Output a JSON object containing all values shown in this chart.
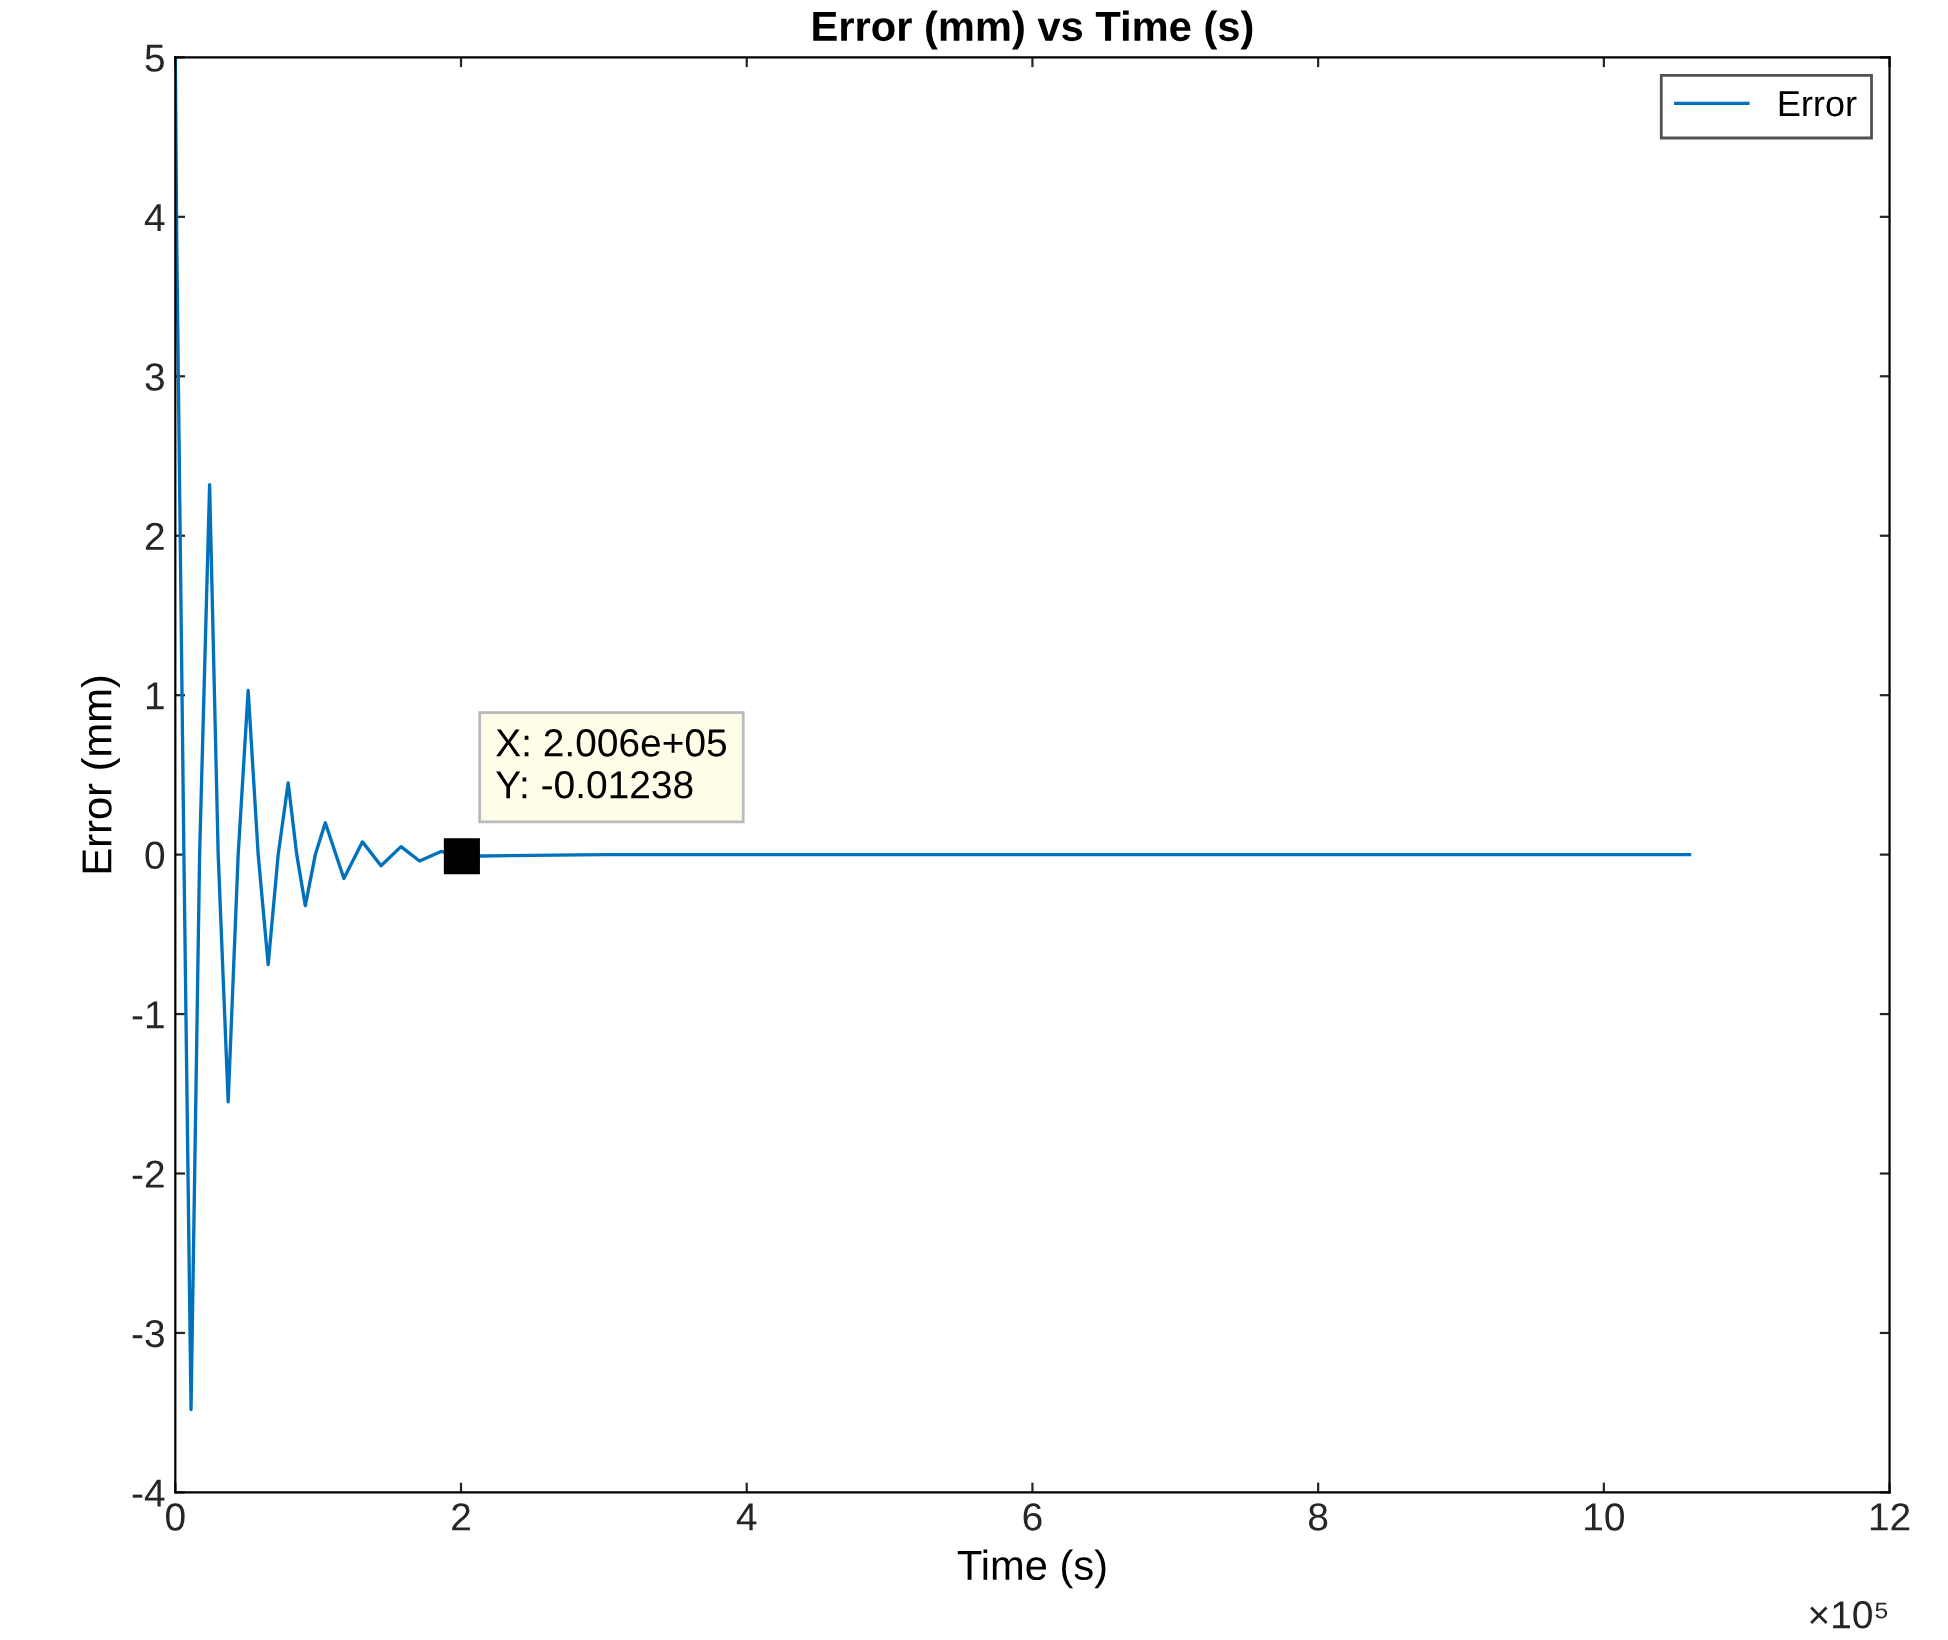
{
  "chart_data": {
    "type": "line",
    "title": "Error (mm) vs Time (s)",
    "xlabel": "Time (s)",
    "ylabel": "Error (mm)",
    "series": [
      {
        "name": "Error",
        "color": "#0072bd",
        "x": [
          0,
          0.01,
          0.06,
          0.11,
          0.17,
          0.24,
          0.3,
          0.37,
          0.44,
          0.51,
          0.58,
          0.65,
          0.72,
          0.79,
          0.85,
          0.91,
          0.98,
          1.05,
          1.18,
          1.31,
          1.44,
          1.58,
          1.71,
          1.86,
          2.006,
          3,
          5,
          8,
          10.6
        ],
        "values": [
          5,
          3.85,
          0,
          -3.48,
          0,
          2.32,
          0,
          -1.55,
          0,
          1.03,
          0,
          -0.69,
          0,
          0.45,
          0,
          -0.32,
          0,
          0.2,
          -0.15,
          0.08,
          -0.07,
          0.05,
          -0.04,
          0.02,
          -0.01,
          0,
          0,
          0,
          0
        ]
      }
    ],
    "xlim": [
      0,
      12
    ],
    "ylim": [
      -4,
      5
    ],
    "xticks": [
      0,
      2,
      4,
      6,
      8,
      10,
      12
    ],
    "yticks": [
      -4,
      -3,
      -2,
      -1,
      0,
      1,
      2,
      3,
      4,
      5
    ],
    "annotations": [
      "×10⁵",
      {
        "text": "X: 2.006e+05\nY: -0.01238",
        "x": 2.006,
        "y": -0.01
      }
    ],
    "legend": "top right",
    "grid": false,
    "marker": "none",
    "line_style": "solid"
  }
}
